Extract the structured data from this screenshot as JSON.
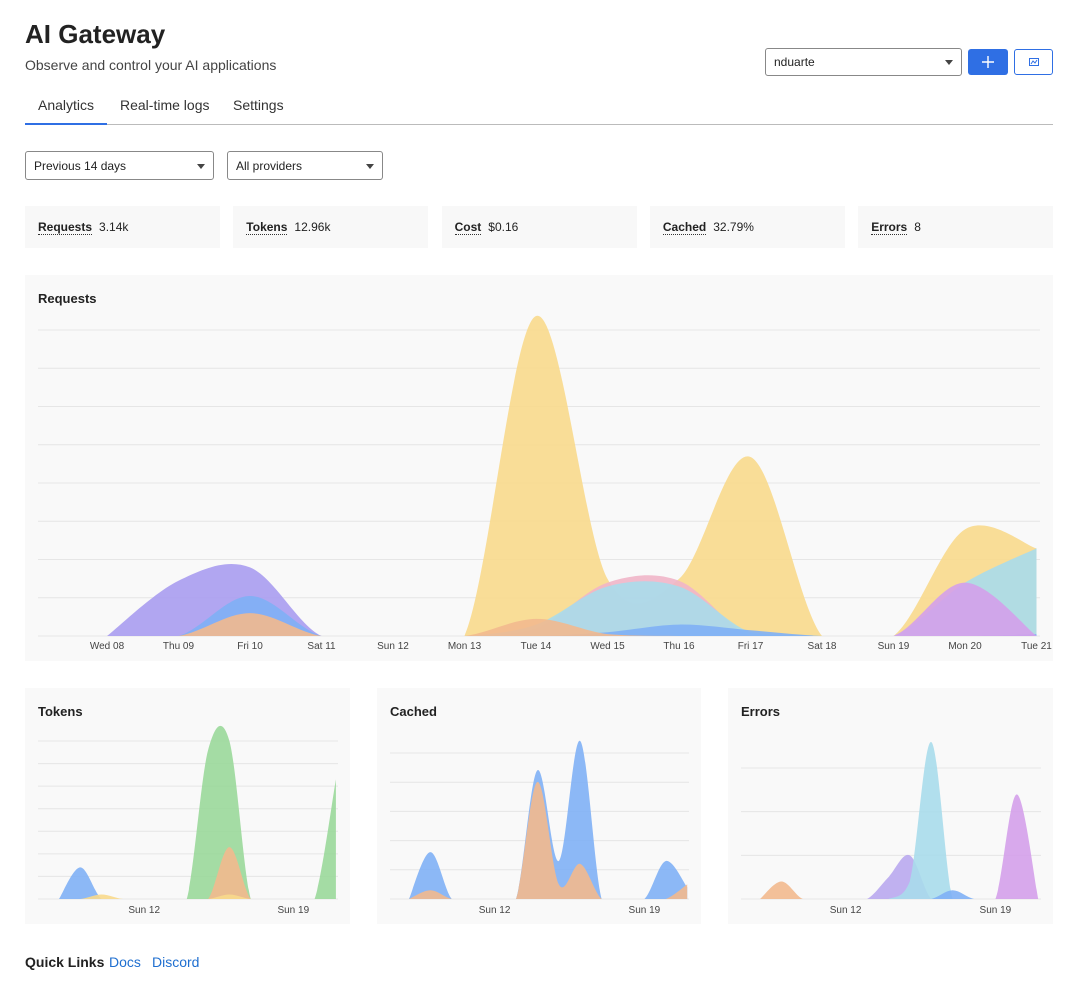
{
  "header": {
    "title": "AI Gateway",
    "subtitle": "Observe and control your AI applications",
    "account": "nduarte"
  },
  "tabs": [
    "Analytics",
    "Real-time logs",
    "Settings"
  ],
  "filters": [
    "Previous 14 days",
    "All providers"
  ],
  "stats": [
    {
      "label": "Requests",
      "value": "3.14k"
    },
    {
      "label": "Tokens",
      "value": "12.96k"
    },
    {
      "label": "Cost",
      "value": "$0.16"
    },
    {
      "label": "Cached",
      "value": "32.79%"
    },
    {
      "label": "Errors",
      "value": "8"
    }
  ],
  "chart_data": [
    {
      "type": "area",
      "title": "Requests",
      "categories": [
        "Wed 08",
        "Thu 09",
        "Fri 10",
        "Sat 11",
        "Sun 12",
        "Mon 13",
        "Tue 14",
        "Wed 15",
        "Thu 16",
        "Fri 17",
        "Sat 18",
        "Sun 19",
        "Mon 20",
        "Tue 21"
      ],
      "ylim": [
        0,
        8.4
      ],
      "series": [
        {
          "color": "#a99cf0",
          "values": [
            0,
            1.45,
            1.8,
            0,
            0,
            0,
            0,
            0,
            0,
            0,
            0,
            0,
            0,
            0
          ]
        },
        {
          "color": "#f8d98c",
          "values": [
            0,
            0,
            0,
            0,
            0,
            0,
            8.4,
            1.5,
            1.5,
            4.7,
            0,
            0,
            2.8,
            2.3
          ]
        },
        {
          "color": "#f0b5c8",
          "values": [
            0,
            0,
            0,
            0,
            0,
            0,
            0.2,
            1.4,
            1.45,
            0,
            0,
            0,
            0,
            0
          ]
        },
        {
          "color": "#a8dbeb",
          "values": [
            0,
            0,
            0,
            0,
            0,
            0,
            0.3,
            1.3,
            1.3,
            0.1,
            0,
            0,
            1.4,
            2.3
          ]
        },
        {
          "color": "#7fb0f5",
          "values": [
            0,
            0,
            1.05,
            0,
            0,
            0,
            0,
            0.1,
            0.3,
            0.15,
            0,
            0,
            0,
            0.05
          ]
        },
        {
          "color": "#d4a0ea",
          "values": [
            0,
            0,
            0,
            0,
            0,
            0,
            0,
            0,
            0,
            0,
            0,
            0,
            1.4,
            0
          ]
        },
        {
          "color": "#f2b98e",
          "values": [
            0,
            0,
            0.6,
            0,
            0,
            0,
            0.45,
            0.05,
            0,
            0,
            0,
            0,
            0,
            0
          ]
        }
      ]
    },
    {
      "type": "area",
      "title": "Tokens",
      "categories": [
        null,
        null,
        null,
        null,
        "Sun 12",
        null,
        null,
        null,
        null,
        null,
        null,
        "Sun 19",
        null,
        null
      ],
      "ylim": [
        0,
        7
      ],
      "series": [
        {
          "color": "#7fb0f5",
          "values": [
            0,
            1.4,
            0,
            0,
            0,
            0,
            0,
            0,
            0,
            0,
            0,
            0,
            0,
            0
          ]
        },
        {
          "color": "#9ad89a",
          "values": [
            0,
            0,
            0,
            0,
            0,
            0,
            0,
            6.6,
            7,
            0,
            0,
            0,
            0,
            5.3
          ]
        },
        {
          "color": "#f2b98e",
          "values": [
            0,
            0,
            0,
            0,
            0,
            0,
            0,
            0,
            2.3,
            0,
            0,
            0,
            0,
            0
          ]
        },
        {
          "color": "#f8d98c",
          "values": [
            0,
            0,
            0.2,
            0,
            0,
            0,
            0,
            0,
            0.2,
            0,
            0,
            0,
            0,
            0
          ]
        }
      ]
    },
    {
      "type": "area",
      "title": "Cached",
      "categories": [
        null,
        null,
        null,
        null,
        "Sun 12",
        null,
        null,
        null,
        null,
        null,
        null,
        "Sun 19",
        null,
        null
      ],
      "ylim": [
        0,
        5.4
      ],
      "series": [
        {
          "color": "#7fb0f5",
          "values": [
            0,
            1.6,
            0,
            0,
            0,
            0,
            4.4,
            1.3,
            5.4,
            0,
            0,
            0,
            1.3,
            0.4
          ]
        },
        {
          "color": "#f2b98e",
          "values": [
            0,
            0.3,
            0,
            0,
            0,
            0,
            4,
            0.5,
            1.2,
            0,
            0,
            0,
            0,
            0.5
          ]
        }
      ]
    },
    {
      "type": "area",
      "title": "Errors",
      "categories": [
        null,
        null,
        null,
        null,
        "Sun 12",
        null,
        null,
        null,
        null,
        null,
        null,
        "Sun 19",
        null,
        null
      ],
      "ylim": [
        0,
        3.6
      ],
      "series": [
        {
          "color": "#f2b98e",
          "values": [
            0,
            0.4,
            0,
            0,
            0,
            0,
            0,
            0,
            0,
            0,
            0,
            0,
            0,
            0
          ]
        },
        {
          "color": "#b9a8ee",
          "values": [
            0,
            0,
            0,
            0,
            0,
            0,
            0.5,
            1,
            0,
            0,
            0,
            0,
            0,
            0
          ]
        },
        {
          "color": "#a8dbeb",
          "values": [
            0,
            0,
            0,
            0,
            0,
            0,
            0,
            0.4,
            3.6,
            0,
            0,
            0,
            0,
            0
          ]
        },
        {
          "color": "#7fb0f5",
          "values": [
            0,
            0,
            0,
            0,
            0,
            0,
            0,
            0,
            0,
            0.2,
            0,
            0,
            0,
            0
          ]
        },
        {
          "color": "#d4a0ea",
          "values": [
            0,
            0,
            0,
            0,
            0,
            0,
            0,
            0,
            0,
            0,
            0,
            0,
            2.4,
            0
          ]
        }
      ]
    }
  ],
  "quick_links": {
    "label": "Quick Links",
    "links": [
      "Docs",
      "Discord"
    ]
  }
}
